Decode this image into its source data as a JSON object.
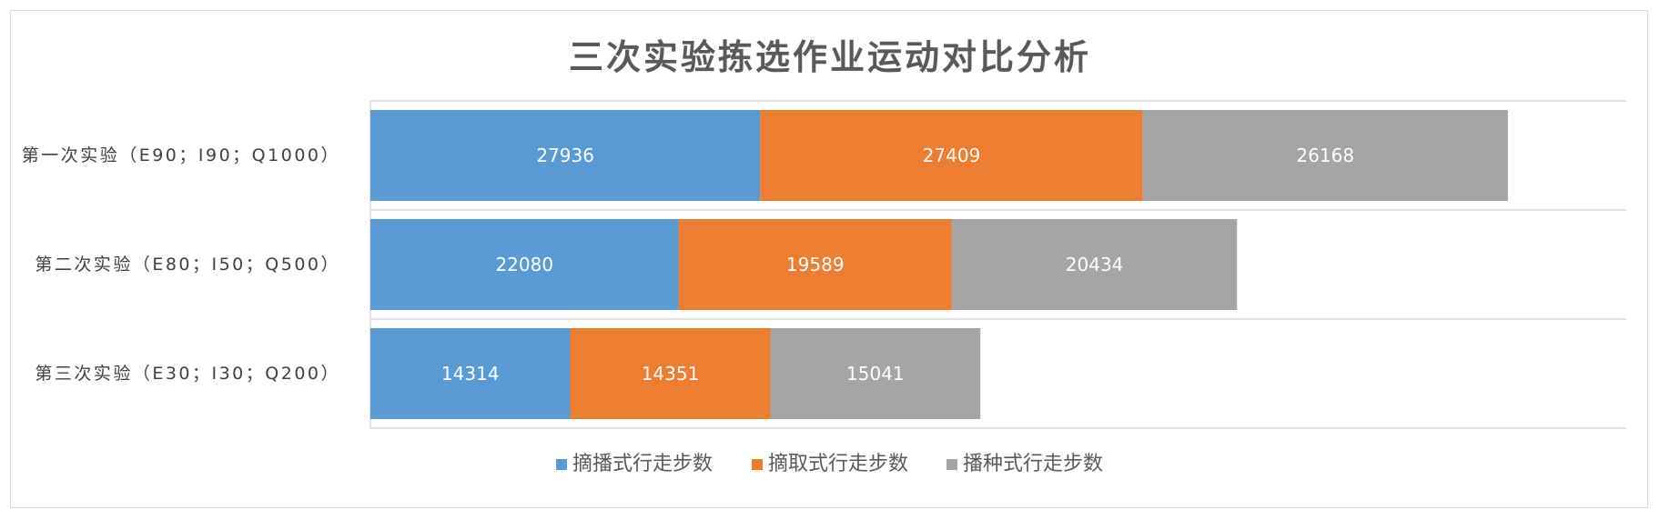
{
  "chart_data": {
    "type": "bar",
    "orientation": "horizontal",
    "stacked": true,
    "title": "三次实验拣选作业运动对比分析",
    "categories": [
      "第一次实验（E90；I90；Q1000）",
      "第二次实验（E80；I50；Q500）",
      "第三次实验（E30；I30；Q200）"
    ],
    "series": [
      {
        "name": "摘播式行走步数",
        "color": "#5b9bd5",
        "values": [
          27936,
          22080,
          14314
        ]
      },
      {
        "name": "摘取式行走步数",
        "color": "#ed7d31",
        "values": [
          27409,
          19589,
          14351
        ]
      },
      {
        "name": "播种式行走步数",
        "color": "#a5a5a5",
        "values": [
          26168,
          20434,
          15041
        ]
      }
    ],
    "xlim": [
      0,
      90000
    ],
    "grid": true,
    "legend": "bottom",
    "data_labels": true
  }
}
